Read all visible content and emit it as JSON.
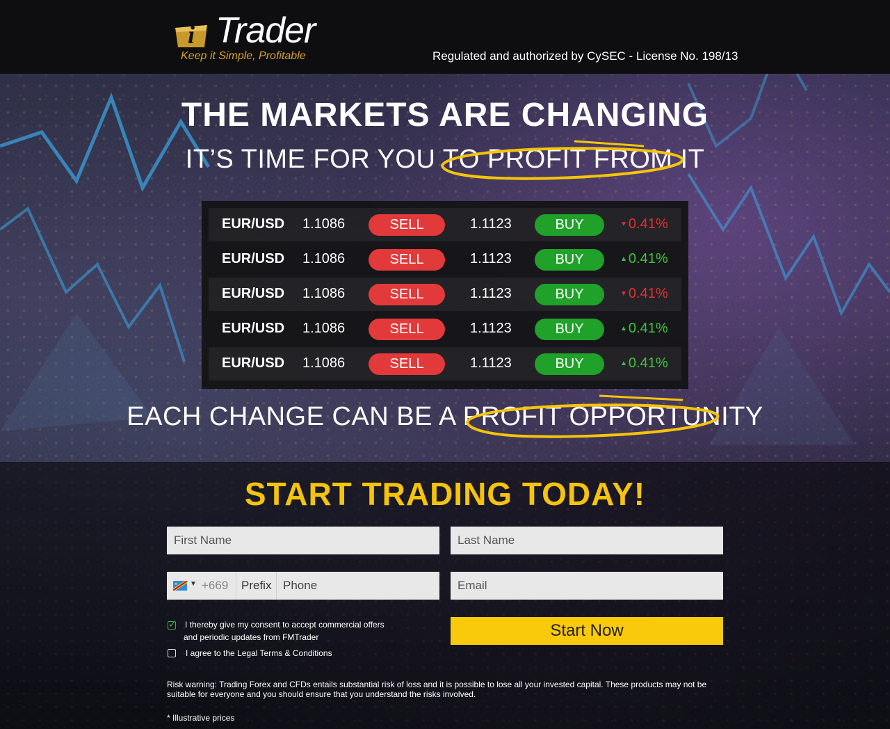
{
  "brand": {
    "logo_i": "i",
    "logo_word": "Trader",
    "tagline": "Keep it Simple, Profitable",
    "accent_color": "#f5c40a"
  },
  "header": {
    "regulation": "Regulated and authorized by CySEC - License No. 198/13"
  },
  "headline": {
    "title": "THE MARKETS ARE CHANGING",
    "subtitle": "IT’S TIME FOR YOU TO PROFIT FROM IT",
    "tagline": "EACH CHANGE CAN BE A PROFIT OPPORTUNITY"
  },
  "quotes": [
    {
      "pair": "EUR/USD",
      "bid": "1.1086",
      "sell_label": "SELL",
      "ask": "1.1123",
      "buy_label": "BUY",
      "change": "0.41%",
      "direction": "down"
    },
    {
      "pair": "EUR/USD",
      "bid": "1.1086",
      "sell_label": "SELL",
      "ask": "1.1123",
      "buy_label": "BUY",
      "change": "0.41%",
      "direction": "up"
    },
    {
      "pair": "EUR/USD",
      "bid": "1.1086",
      "sell_label": "SELL",
      "ask": "1.1123",
      "buy_label": "BUY",
      "change": "0.41%",
      "direction": "down"
    },
    {
      "pair": "EUR/USD",
      "bid": "1.1086",
      "sell_label": "SELL",
      "ask": "1.1123",
      "buy_label": "BUY",
      "change": "0.41%",
      "direction": "up"
    },
    {
      "pair": "EUR/USD",
      "bid": "1.1086",
      "sell_label": "SELL",
      "ask": "1.1123",
      "buy_label": "BUY",
      "change": "0.41%",
      "direction": "up"
    }
  ],
  "form": {
    "heading": "START TRADING TODAY!",
    "first_name_placeholder": "First Name",
    "last_name_placeholder": "Last Name",
    "dial_code": "+669",
    "prefix_label": "Prefix",
    "phone_placeholder": "Phone",
    "email_placeholder": "Email",
    "submit_label": "Start Now",
    "consent_offers_line1": "I thereby give my consent to accept commercial offers",
    "consent_offers_line2": "and periodic updates from FMTrader",
    "consent_offers_checked": true,
    "consent_terms": "I agree to the Legal Terms & Conditions",
    "consent_terms_checked": false
  },
  "footer": {
    "risk_warning": "Risk warning: Trading Forex and CFDs entails substantial risk of loss and it is possible to lose all your invested capital. These products may not be suitable for everyone and you should ensure that you understand the risks involved.",
    "illustrative": "* Illustrative prices"
  }
}
